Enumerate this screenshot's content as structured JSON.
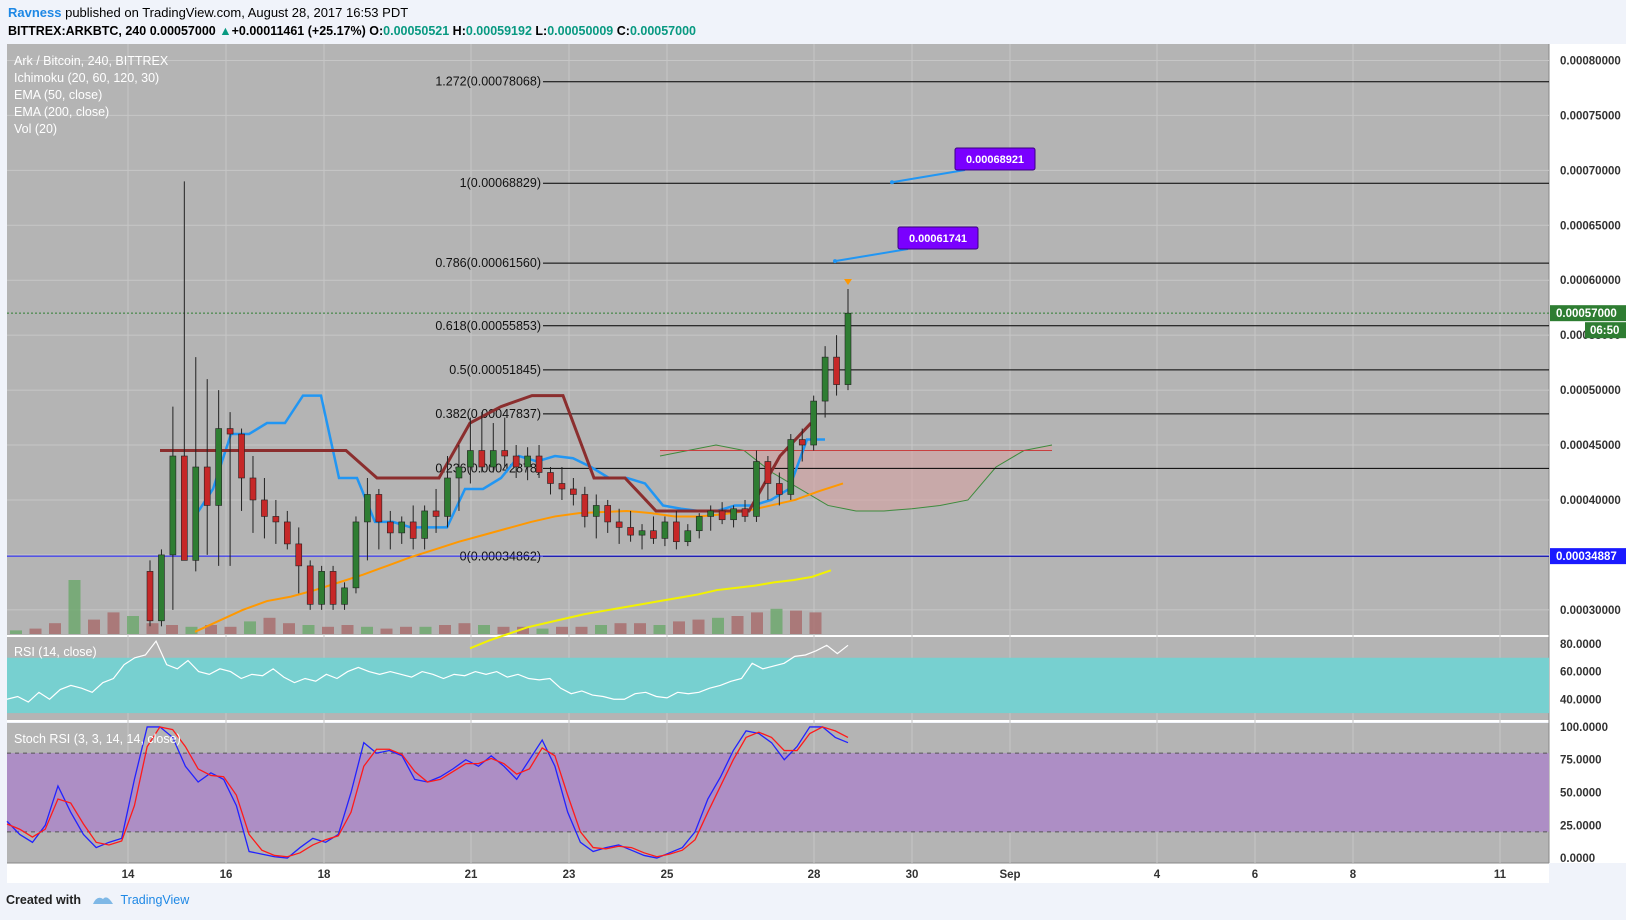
{
  "header": {
    "author": "Ravness",
    "published": " published on TradingView.com, August 28, 2017 16:53 PDT",
    "symbol": "BITTREX:ARKBTC, 240",
    "last": "0.00057000",
    "change_arrow": "▲",
    "change": "+0.00011461 (+25.17%)",
    "o_label": "O:",
    "o": "0.00050521",
    "h_label": "H:",
    "h": "0.00059192",
    "l_label": "L:",
    "l": "0.00050009",
    "c_label": "C:",
    "c": "0.00057000"
  },
  "legend": {
    "title": "Ark / Bitcoin, 240, BITTREX",
    "items": [
      "Ichimoku (20, 60, 120, 30)",
      "EMA (50, close)",
      "EMA (200, close)",
      "Vol (20)"
    ]
  },
  "footer": {
    "created": "Created with",
    "brand": "TradingView"
  },
  "colors": {
    "background": "#b4b4b4",
    "panel_bg": "#ffffff",
    "grid": "#c6c6c6",
    "up": "#2e7d32",
    "down": "#c62828",
    "fib": "#000000",
    "hline": "#1a1aff",
    "ema50": "#ff9800",
    "ema200": "#f2f200",
    "tenkan": "#2196f3",
    "kijun": "#8b2e2e",
    "rsi_band": "#77d0d0",
    "stoch_band": "#ad8ec5",
    "rsi_line": "#ffffff",
    "stoch_k": "#2222ff",
    "stoch_d": "#ff1a1a",
    "label_purple": "#7a00ff"
  },
  "chart_data": [
    {
      "type": "candlestick",
      "title": "Ark / Bitcoin, 240, BITTREX",
      "y_axis_ticks": [
        "0.00080000",
        "0.00075000",
        "0.00070000",
        "0.00065000",
        "0.00060000",
        "0.00055000",
        "0.00050000",
        "0.00045000",
        "0.00040000",
        "0.00035000",
        "0.00030000"
      ],
      "ylim": [
        0.000278,
        0.000815
      ],
      "x_axis_ticks": [
        "14",
        "16",
        "18",
        "21",
        "23",
        "25",
        "28",
        "30",
        "Sep",
        "4",
        "6",
        "8",
        "11"
      ],
      "last_price_label": "0.00057000",
      "countdown_label": "06:50",
      "hline_label": "0.00034887",
      "hline_value": 0.00034887,
      "fib_levels": [
        {
          "label": "1.272(0.00078068)",
          "value": 0.00078068
        },
        {
          "label": "1(0.00068829)",
          "value": 0.00068829
        },
        {
          "label": "0.786(0.00061560)",
          "value": 0.0006156
        },
        {
          "label": "0.618(0.00055853)",
          "value": 0.00055853
        },
        {
          "label": "0.5(0.00051845)",
          "value": 0.00051845
        },
        {
          "label": "0.382(0.00047837)",
          "value": 0.00047837
        },
        {
          "label": "0.236(0.00042878)",
          "value": 0.00042878
        },
        {
          "label": "0(0.00034862)",
          "value": 0.00034862
        }
      ],
      "price_callouts": [
        {
          "label": "0.00068921",
          "value": 0.00068921
        },
        {
          "label": "0.00061741",
          "value": 0.00061741
        }
      ],
      "candles": [
        {
          "o": 0.000335,
          "h": 0.000345,
          "l": 0.000285,
          "c": 0.00029
        },
        {
          "o": 0.00029,
          "h": 0.000355,
          "l": 0.000285,
          "c": 0.00035
        },
        {
          "o": 0.00035,
          "h": 0.000485,
          "l": 0.0003,
          "c": 0.00044
        },
        {
          "o": 0.00044,
          "h": 0.00069,
          "l": 0.00035,
          "c": 0.000345
        },
        {
          "o": 0.000345,
          "h": 0.00053,
          "l": 0.000335,
          "c": 0.00043
        },
        {
          "o": 0.00043,
          "h": 0.00051,
          "l": 0.00035,
          "c": 0.000395
        },
        {
          "o": 0.000395,
          "h": 0.0005,
          "l": 0.00034,
          "c": 0.000465
        },
        {
          "o": 0.000465,
          "h": 0.00048,
          "l": 0.00034,
          "c": 0.00046
        },
        {
          "o": 0.00046,
          "h": 0.000465,
          "l": 0.00039,
          "c": 0.00042
        },
        {
          "o": 0.00042,
          "h": 0.00044,
          "l": 0.00037,
          "c": 0.0004
        },
        {
          "o": 0.0004,
          "h": 0.00042,
          "l": 0.000365,
          "c": 0.000385
        },
        {
          "o": 0.000385,
          "h": 0.0004,
          "l": 0.00036,
          "c": 0.00038
        },
        {
          "o": 0.00038,
          "h": 0.00039,
          "l": 0.000355,
          "c": 0.00036
        },
        {
          "o": 0.00036,
          "h": 0.000375,
          "l": 0.000315,
          "c": 0.00034
        },
        {
          "o": 0.00034,
          "h": 0.000345,
          "l": 0.0003,
          "c": 0.000305
        },
        {
          "o": 0.000305,
          "h": 0.00034,
          "l": 0.0003,
          "c": 0.000335
        },
        {
          "o": 0.000335,
          "h": 0.00034,
          "l": 0.0003,
          "c": 0.000305
        },
        {
          "o": 0.000305,
          "h": 0.000325,
          "l": 0.0003,
          "c": 0.00032
        },
        {
          "o": 0.00032,
          "h": 0.000385,
          "l": 0.000315,
          "c": 0.00038
        },
        {
          "o": 0.00038,
          "h": 0.00042,
          "l": 0.000345,
          "c": 0.000405
        },
        {
          "o": 0.000405,
          "h": 0.00041,
          "l": 0.000355,
          "c": 0.00038
        },
        {
          "o": 0.00038,
          "h": 0.00039,
          "l": 0.000355,
          "c": 0.00037
        },
        {
          "o": 0.00037,
          "h": 0.000385,
          "l": 0.00036,
          "c": 0.00038
        },
        {
          "o": 0.00038,
          "h": 0.000395,
          "l": 0.000355,
          "c": 0.000365
        },
        {
          "o": 0.000365,
          "h": 0.000395,
          "l": 0.000355,
          "c": 0.00039
        },
        {
          "o": 0.00039,
          "h": 0.00041,
          "l": 0.00037,
          "c": 0.000385
        },
        {
          "o": 0.000385,
          "h": 0.00044,
          "l": 0.000375,
          "c": 0.00042
        },
        {
          "o": 0.00042,
          "h": 0.00045,
          "l": 0.00039,
          "c": 0.00043
        },
        {
          "o": 0.00043,
          "h": 0.000475,
          "l": 0.000415,
          "c": 0.000445
        },
        {
          "o": 0.000445,
          "h": 0.00048,
          "l": 0.000425,
          "c": 0.00043
        },
        {
          "o": 0.00043,
          "h": 0.00047,
          "l": 0.000425,
          "c": 0.000445
        },
        {
          "o": 0.000445,
          "h": 0.000475,
          "l": 0.00043,
          "c": 0.00044
        },
        {
          "o": 0.00044,
          "h": 0.00045,
          "l": 0.00042,
          "c": 0.00043
        },
        {
          "o": 0.00043,
          "h": 0.000448,
          "l": 0.000418,
          "c": 0.00044
        },
        {
          "o": 0.00044,
          "h": 0.00045,
          "l": 0.00042,
          "c": 0.000425
        },
        {
          "o": 0.000425,
          "h": 0.00043,
          "l": 0.000405,
          "c": 0.000415
        },
        {
          "o": 0.000415,
          "h": 0.00043,
          "l": 0.0004,
          "c": 0.00041
        },
        {
          "o": 0.00041,
          "h": 0.00042,
          "l": 0.000395,
          "c": 0.000405
        },
        {
          "o": 0.000405,
          "h": 0.000412,
          "l": 0.000375,
          "c": 0.000385
        },
        {
          "o": 0.000385,
          "h": 0.000405,
          "l": 0.000365,
          "c": 0.000395
        },
        {
          "o": 0.000395,
          "h": 0.0004,
          "l": 0.00037,
          "c": 0.00038
        },
        {
          "o": 0.00038,
          "h": 0.000392,
          "l": 0.00036,
          "c": 0.000375
        },
        {
          "o": 0.000375,
          "h": 0.00039,
          "l": 0.000362,
          "c": 0.000368
        },
        {
          "o": 0.000368,
          "h": 0.000378,
          "l": 0.000355,
          "c": 0.000372
        },
        {
          "o": 0.000372,
          "h": 0.000385,
          "l": 0.00036,
          "c": 0.000365
        },
        {
          "o": 0.000365,
          "h": 0.000385,
          "l": 0.000358,
          "c": 0.00038
        },
        {
          "o": 0.00038,
          "h": 0.00039,
          "l": 0.000355,
          "c": 0.000362
        },
        {
          "o": 0.000362,
          "h": 0.000378,
          "l": 0.000358,
          "c": 0.000372
        },
        {
          "o": 0.000372,
          "h": 0.000388,
          "l": 0.000365,
          "c": 0.000385
        },
        {
          "o": 0.000385,
          "h": 0.000395,
          "l": 0.000372,
          "c": 0.00039
        },
        {
          "o": 0.00039,
          "h": 0.000398,
          "l": 0.000378,
          "c": 0.000382
        },
        {
          "o": 0.000382,
          "h": 0.000395,
          "l": 0.000375,
          "c": 0.000392
        },
        {
          "o": 0.000392,
          "h": 0.0004,
          "l": 0.00038,
          "c": 0.000385
        },
        {
          "o": 0.000385,
          "h": 0.000445,
          "l": 0.00038,
          "c": 0.000435
        },
        {
          "o": 0.000435,
          "h": 0.00044,
          "l": 0.0004,
          "c": 0.000415
        },
        {
          "o": 0.000415,
          "h": 0.000425,
          "l": 0.000395,
          "c": 0.000405
        },
        {
          "o": 0.000405,
          "h": 0.00046,
          "l": 0.0004,
          "c": 0.000455
        },
        {
          "o": 0.000455,
          "h": 0.000465,
          "l": 0.000435,
          "c": 0.00045
        },
        {
          "o": 0.00045,
          "h": 0.000495,
          "l": 0.000445,
          "c": 0.00049
        },
        {
          "o": 0.00049,
          "h": 0.00054,
          "l": 0.000475,
          "c": 0.00053
        },
        {
          "o": 0.00053,
          "h": 0.00055,
          "l": 0.000495,
          "c": 0.000505
        },
        {
          "o": 0.000505,
          "h": 0.000592,
          "l": 0.0005,
          "c": 0.00057
        }
      ],
      "ema50": [
        0.00028,
        0.00029,
        0.0003,
        0.000308,
        0.000312,
        0.000318,
        0.000325,
        0.000332,
        0.00034,
        0.000348,
        0.000355,
        0.000362,
        0.000368,
        0.000374,
        0.00038,
        0.000385,
        0.000388,
        0.000389,
        0.00039,
        0.000388,
        0.000385,
        0.000385,
        0.000387,
        0.00039,
        0.000395,
        0.0004,
        0.000408,
        0.000415
      ],
      "ema200": [
        0.000265,
        0.000272,
        0.000278,
        0.000284,
        0.000288,
        0.000292,
        0.000296,
        0.000299,
        0.000302,
        0.000305,
        0.000308,
        0.000311,
        0.000314,
        0.000318,
        0.00032,
        0.000322,
        0.000325,
        0.000327,
        0.00033,
        0.000336
      ],
      "tenkan": [
        0.000385,
        0.00041,
        0.00046,
        0.00046,
        0.00047,
        0.00047,
        0.000495,
        0.000495,
        0.00042,
        0.00042,
        0.00038,
        0.00038,
        0.000375,
        0.000375,
        0.000375,
        0.00041,
        0.00041,
        0.00042,
        0.00044,
        0.000435,
        0.00044,
        0.000438,
        0.00043,
        0.00042,
        0.00042,
        0.000415,
        0.000395,
        0.000392,
        0.00039,
        0.00039,
        0.000395,
        0.000395,
        0.0004,
        0.00041,
        0.000455,
        0.000455
      ],
      "kijun": [
        0.000445,
        0.000445,
        0.000445,
        0.000445,
        0.000445,
        0.000445,
        0.000445,
        0.00042,
        0.00042,
        0.00042,
        0.00047,
        0.000485,
        0.000495,
        0.000495,
        0.00042,
        0.00042,
        0.00039,
        0.00039,
        0.00039,
        0.00039,
        0.00044,
        0.00047
      ],
      "cloud_band": [
        0.00044,
        0.000445,
        0.00045,
        0.000445,
        0.000425,
        0.00041,
        0.000395,
        0.00039,
        0.00039,
        0.000392,
        0.000395,
        0.0004,
        0.00043,
        0.000445,
        0.00045
      ],
      "volume": [
        2,
        3,
        6,
        30,
        8,
        12,
        10,
        6,
        5,
        4,
        5,
        4,
        7,
        9,
        6,
        5,
        4,
        5,
        4,
        3,
        4,
        4,
        5,
        6,
        5,
        4,
        4,
        3,
        4,
        4,
        5,
        6,
        6,
        5,
        7,
        8,
        9,
        10,
        12,
        14,
        13,
        12
      ]
    },
    {
      "type": "line",
      "title": "RSI (14, close)",
      "y_axis_ticks": [
        "80.0000",
        "60.0000",
        "40.0000"
      ],
      "band": [
        30,
        70
      ],
      "ylim": [
        25,
        85
      ],
      "values": [
        40,
        42,
        38,
        45,
        40,
        47,
        50,
        48,
        45,
        52,
        55,
        65,
        70,
        72,
        82,
        65,
        62,
        68,
        60,
        58,
        62,
        60,
        55,
        58,
        57,
        62,
        56,
        52,
        55,
        53,
        58,
        55,
        60,
        63,
        60,
        58,
        60,
        58,
        56,
        60,
        58,
        55,
        58,
        57,
        60,
        58,
        60,
        56,
        58,
        55,
        54,
        55,
        48,
        44,
        46,
        43,
        42,
        40,
        40,
        44,
        45,
        42,
        41,
        45,
        44,
        45,
        48,
        50,
        53,
        55,
        66,
        62,
        64,
        66,
        71,
        72,
        75,
        79,
        73,
        79
      ]
    },
    {
      "type": "line",
      "title": "Stoch RSI (3, 3, 14, 14, close)",
      "y_axis_ticks": [
        "100.0000",
        "75.0000",
        "50.0000",
        "25.0000",
        "0.0000"
      ],
      "band": [
        20,
        80
      ],
      "ylim": [
        -3,
        103
      ],
      "series": [
        {
          "values": [
            28,
            18,
            12,
            25,
            55,
            35,
            18,
            8,
            12,
            15,
            60,
            100,
            100,
            92,
            70,
            58,
            65,
            60,
            40,
            5,
            3,
            1,
            0,
            8,
            15,
            12,
            18,
            50,
            88,
            80,
            82,
            78,
            60,
            58,
            62,
            68,
            75,
            70,
            78,
            70,
            60,
            75,
            90,
            70,
            35,
            12,
            5,
            8,
            10,
            6,
            2,
            0,
            4,
            8,
            20,
            45,
            62,
            82,
            97,
            95,
            88,
            75,
            85,
            100,
            100,
            92,
            88
          ]
        },
        {
          "values": [
            26,
            22,
            16,
            22,
            45,
            42,
            26,
            12,
            10,
            13,
            40,
            85,
            100,
            98,
            85,
            68,
            63,
            62,
            48,
            18,
            6,
            2,
            1,
            4,
            10,
            14,
            17,
            35,
            70,
            83,
            83,
            79,
            66,
            58,
            60,
            66,
            72,
            72,
            76,
            72,
            64,
            68,
            84,
            78,
            48,
            20,
            8,
            7,
            9,
            8,
            4,
            1,
            3,
            6,
            14,
            35,
            55,
            75,
            92,
            96,
            92,
            82,
            82,
            95,
            100,
            97,
            92
          ]
        }
      ]
    }
  ]
}
